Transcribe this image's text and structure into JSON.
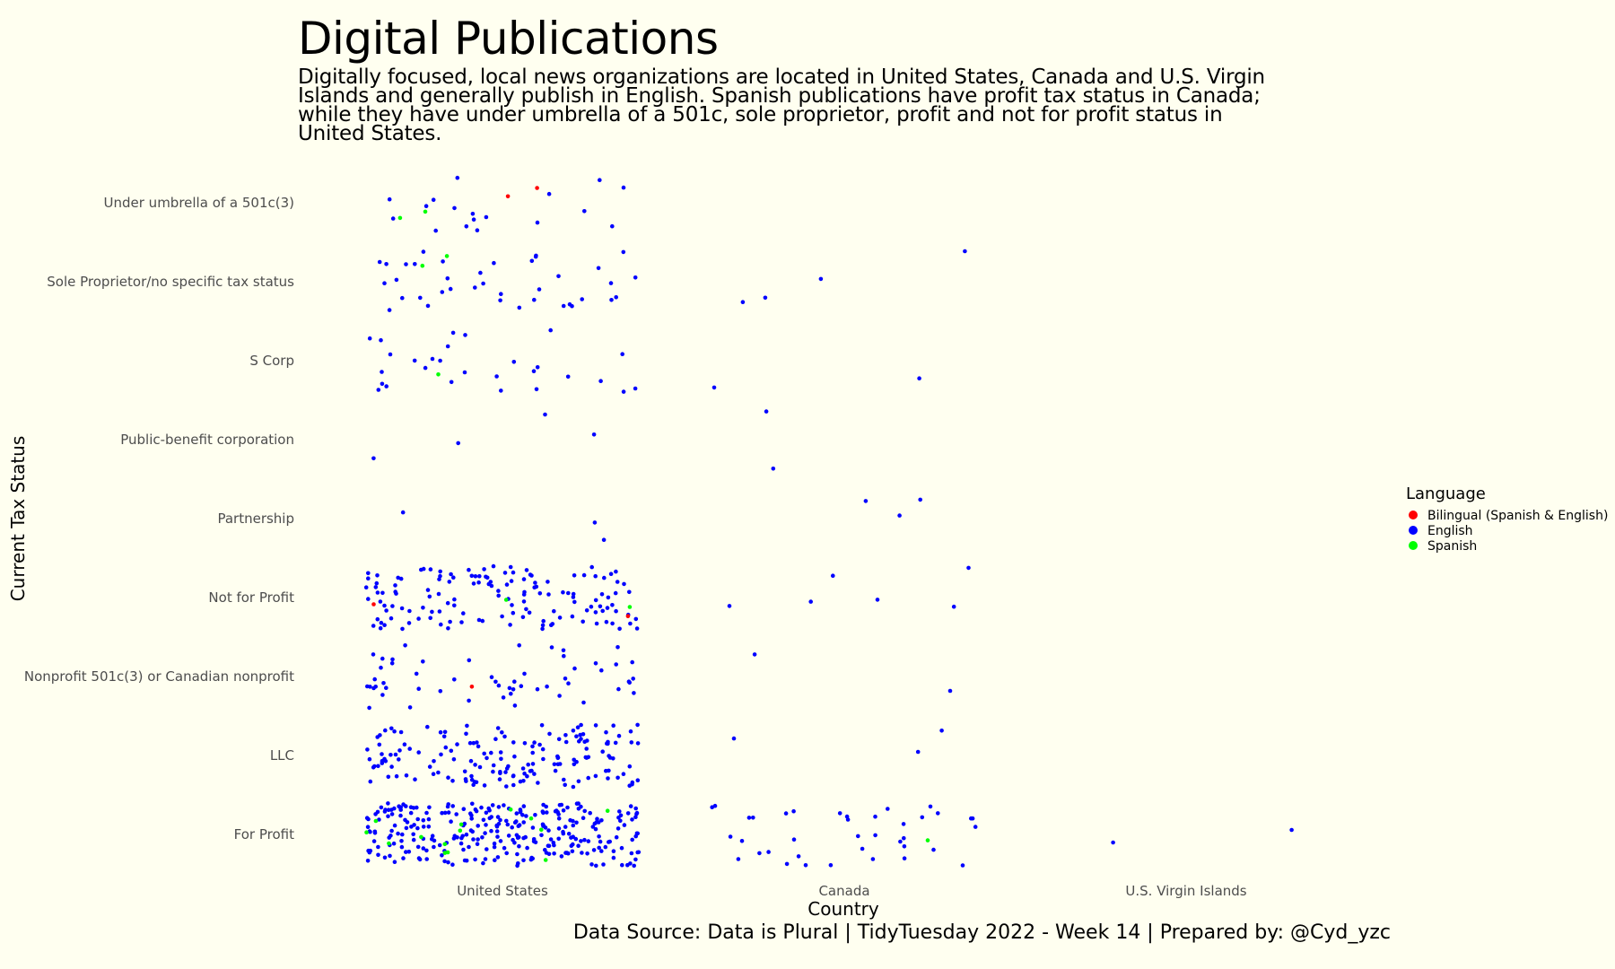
{
  "title": "Digital Publications",
  "subtitle": "Digitally focused, local news organizations are located in United States, Canada and U.S. Virgin Islands and generally publish in English. Spanish publications have profit tax status in Canada; while they have under umbrella of a 501c, sole proprietor, profit and not for profit status in United States.",
  "caption": "Data Source: Data is Plural | TidyTuesday 2022 - Week 14 | Prepared by: @Cyd_yzc",
  "chart_data": {
    "type": "scatter",
    "jitter": true,
    "xlabel": "Country",
    "ylabel": "Current Tax Status",
    "x_categories": [
      "United States",
      "Canada",
      "U.S. Virgin Islands"
    ],
    "y_categories": [
      "For Profit",
      "LLC",
      "Nonprofit 501c(3) or Canadian nonprofit",
      "Not for Profit",
      "Partnership",
      "Public-benefit corporation",
      "S Corp",
      "Sole Proprietor/no specific tax status",
      "Under umbrella of a 501c(3)"
    ],
    "legend": {
      "title": "Language",
      "position": "right",
      "items": [
        {
          "label": "Bilingual (Spanish & English)",
          "color": "#ff0000"
        },
        {
          "label": "English",
          "color": "#0000ff"
        },
        {
          "label": "Spanish",
          "color": "#00ff00"
        }
      ]
    },
    "grid": false,
    "points_note": "Each point is one publication; counts per group estimated from the image.",
    "series": [
      {
        "name": "English",
        "color": "#0000ff",
        "counts": [
          {
            "x": "United States",
            "y": "For Profit",
            "n": 300
          },
          {
            "x": "United States",
            "y": "LLC",
            "n": 165
          },
          {
            "x": "United States",
            "y": "Nonprofit 501c(3) or Canadian nonprofit",
            "n": 55
          },
          {
            "x": "United States",
            "y": "Not for Profit",
            "n": 140
          },
          {
            "x": "United States",
            "y": "Partnership",
            "n": 3
          },
          {
            "x": "United States",
            "y": "Public-benefit corporation",
            "n": 4
          },
          {
            "x": "United States",
            "y": "S Corp",
            "n": 28
          },
          {
            "x": "United States",
            "y": "Sole Proprietor/no specific tax status",
            "n": 38
          },
          {
            "x": "United States",
            "y": "Under umbrella of a 501c(3)",
            "n": 18
          },
          {
            "x": "Canada",
            "y": "For Profit",
            "n": 38
          },
          {
            "x": "Canada",
            "y": "LLC",
            "n": 3
          },
          {
            "x": "Canada",
            "y": "Nonprofit 501c(3) or Canadian nonprofit",
            "n": 2
          },
          {
            "x": "Canada",
            "y": "Not for Profit",
            "n": 6
          },
          {
            "x": "Canada",
            "y": "Partnership",
            "n": 3
          },
          {
            "x": "Canada",
            "y": "Public-benefit corporation",
            "n": 2
          },
          {
            "x": "Canada",
            "y": "S Corp",
            "n": 2
          },
          {
            "x": "Canada",
            "y": "Sole Proprietor/no specific tax status",
            "n": 4
          },
          {
            "x": "U.S. Virgin Islands",
            "y": "For Profit",
            "n": 2
          }
        ]
      },
      {
        "name": "Spanish",
        "color": "#00ff00",
        "counts": [
          {
            "x": "United States",
            "y": "For Profit",
            "n": 14
          },
          {
            "x": "United States",
            "y": "Not for Profit",
            "n": 2
          },
          {
            "x": "United States",
            "y": "S Corp",
            "n": 1
          },
          {
            "x": "United States",
            "y": "Sole Proprietor/no specific tax status",
            "n": 2
          },
          {
            "x": "United States",
            "y": "Under umbrella of a 501c(3)",
            "n": 2
          },
          {
            "x": "Canada",
            "y": "For Profit",
            "n": 1
          }
        ]
      },
      {
        "name": "Bilingual (Spanish & English)",
        "color": "#ff0000",
        "counts": [
          {
            "x": "United States",
            "y": "Not for Profit",
            "n": 2
          },
          {
            "x": "United States",
            "y": "Nonprofit 501c(3) or Canadian nonprofit",
            "n": 1
          },
          {
            "x": "United States",
            "y": "Under umbrella of a 501c(3)",
            "n": 2
          }
        ]
      }
    ]
  }
}
